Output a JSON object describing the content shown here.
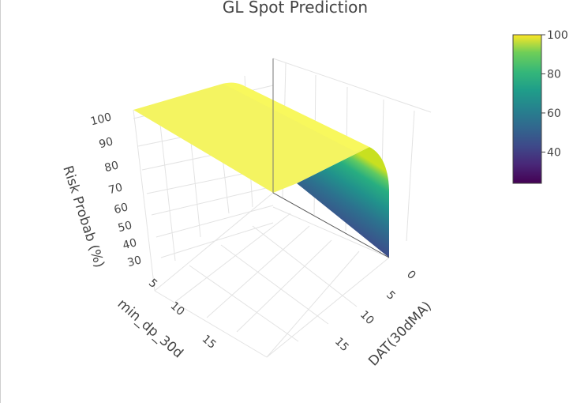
{
  "chart_data": {
    "type": "surface",
    "title": "GL Spot Prediction",
    "axes": {
      "x": {
        "label": "min_dp_30d",
        "ticks": [
          5,
          10,
          15
        ]
      },
      "y": {
        "label": "DAT(30dMA)",
        "ticks": [
          0,
          5,
          10,
          15
        ]
      },
      "z": {
        "label": "Risk Probab (%)",
        "ticks": [
          30,
          40,
          50,
          60,
          70,
          80,
          90,
          100
        ],
        "range": [
          25,
          100
        ]
      }
    },
    "colorbar": {
      "colorscale": "Viridis",
      "range": [
        24,
        100
      ],
      "ticks": [
        40,
        60,
        80,
        100
      ]
    },
    "surface_profile": {
      "description_values": "Risk is ~100% across most of the domain; near DAT(30dMA)=0 it drops with min_dp_30d",
      "dat_30dma": [
        0,
        0.5,
        1,
        2,
        3,
        18
      ],
      "risk_at_min_dp_high": [
        24,
        55,
        85,
        100,
        100,
        100
      ],
      "risk_at_min_dp_low": [
        100,
        100,
        100,
        100,
        100,
        100
      ]
    },
    "grid": true,
    "legend": "none"
  }
}
